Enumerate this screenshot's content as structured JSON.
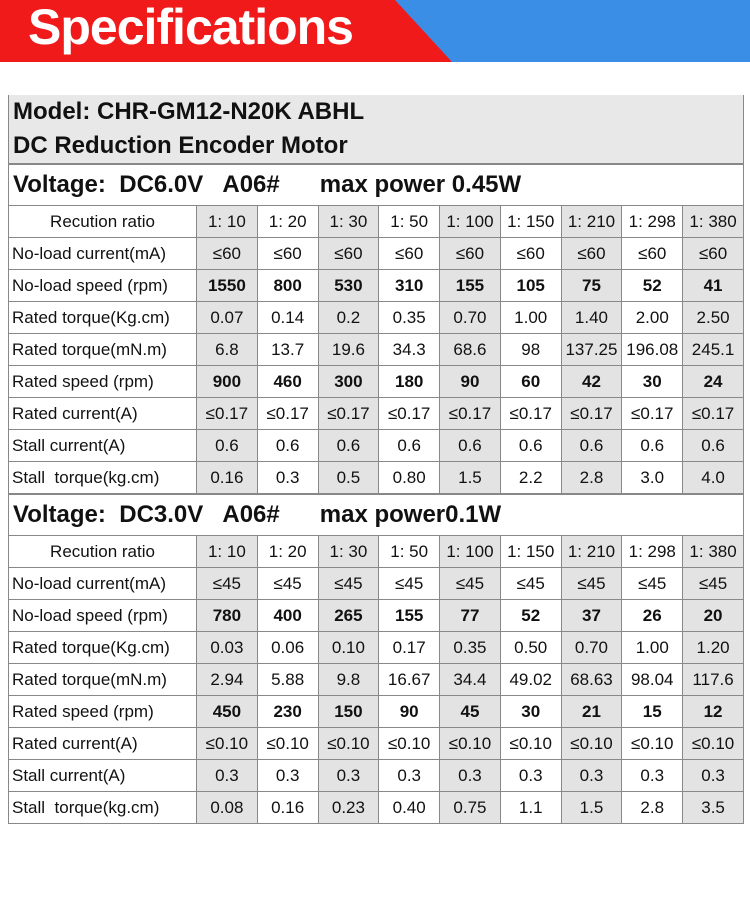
{
  "header": {
    "title": "Specifications"
  },
  "model": "Model: CHR-GM12-N20K ABHL",
  "description": "DC Reduction Encoder Motor",
  "sections": [
    {
      "voltage": "Voltage:  DC6.0V   A06#      max power 0.45W",
      "ratio_label": "Recution ratio",
      "ratios": [
        "1: 10",
        "1: 20",
        "1: 30",
        "1: 50",
        "1: 100",
        "1: 150",
        "1: 210",
        "1: 298",
        "1: 380"
      ],
      "rows": [
        {
          "label": "No-load current(mA)",
          "values": [
            "≤60",
            "≤60",
            "≤60",
            "≤60",
            "≤60",
            "≤60",
            "≤60",
            "≤60",
            "≤60"
          ]
        },
        {
          "label": "No-load speed (rpm)",
          "values": [
            "1550",
            "800",
            "530",
            "310",
            "155",
            "105",
            "75",
            "52",
            "41"
          ]
        },
        {
          "label": "Rated torque(Kg.cm)",
          "values": [
            "0.07",
            "0.14",
            "0.2",
            "0.35",
            "0.70",
            "1.00",
            "1.40",
            "2.00",
            "2.50"
          ]
        },
        {
          "label": "Rated torque(mN.m)",
          "values": [
            "6.8",
            "13.7",
            "19.6",
            "34.3",
            "68.6",
            "98",
            "137.25",
            "196.08",
            "245.1"
          ]
        },
        {
          "label": "Rated speed (rpm)",
          "values": [
            "900",
            "460",
            "300",
            "180",
            "90",
            "60",
            "42",
            "30",
            "24"
          ]
        },
        {
          "label": "Rated current(A)",
          "values": [
            "≤0.17",
            "≤0.17",
            "≤0.17",
            "≤0.17",
            "≤0.17",
            "≤0.17",
            "≤0.17",
            "≤0.17",
            "≤0.17"
          ]
        },
        {
          "label": "Stall current(A)",
          "values": [
            "0.6",
            "0.6",
            "0.6",
            "0.6",
            "0.6",
            "0.6",
            "0.6",
            "0.6",
            "0.6"
          ]
        },
        {
          "label": "Stall  torque(kg.cm)",
          "values": [
            "0.16",
            "0.3",
            "0.5",
            "0.80",
            "1.5",
            "2.2",
            "2.8",
            "3.0",
            "4.0"
          ]
        }
      ]
    },
    {
      "voltage": "Voltage:  DC3.0V   A06#      max power0.1W",
      "ratio_label": "Recution ratio",
      "ratios": [
        "1: 10",
        "1: 20",
        "1: 30",
        "1: 50",
        "1: 100",
        "1: 150",
        "1: 210",
        "1: 298",
        "1: 380"
      ],
      "rows": [
        {
          "label": "No-load current(mA)",
          "values": [
            "≤45",
            "≤45",
            "≤45",
            "≤45",
            "≤45",
            "≤45",
            "≤45",
            "≤45",
            "≤45"
          ]
        },
        {
          "label": "No-load speed (rpm)",
          "values": [
            "780",
            "400",
            "265",
            "155",
            "77",
            "52",
            "37",
            "26",
            "20"
          ]
        },
        {
          "label": "Rated torque(Kg.cm)",
          "values": [
            "0.03",
            "0.06",
            "0.10",
            "0.17",
            "0.35",
            "0.50",
            "0.70",
            "1.00",
            "1.20"
          ]
        },
        {
          "label": "Rated torque(mN.m)",
          "values": [
            "2.94",
            "5.88",
            "9.8",
            "16.67",
            "34.4",
            "49.02",
            "68.63",
            "98.04",
            "117.6"
          ]
        },
        {
          "label": "Rated speed (rpm)",
          "values": [
            "450",
            "230",
            "150",
            "90",
            "45",
            "30",
            "21",
            "15",
            "12"
          ]
        },
        {
          "label": "Rated current(A)",
          "values": [
            "≤0.10",
            "≤0.10",
            "≤0.10",
            "≤0.10",
            "≤0.10",
            "≤0.10",
            "≤0.10",
            "≤0.10",
            "≤0.10"
          ]
        },
        {
          "label": "Stall current(A)",
          "values": [
            "0.3",
            "0.3",
            "0.3",
            "0.3",
            "0.3",
            "0.3",
            "0.3",
            "0.3",
            "0.3"
          ]
        },
        {
          "label": "Stall  torque(kg.cm)",
          "values": [
            "0.08",
            "0.16",
            "0.23",
            "0.40",
            "0.75",
            "1.1",
            "1.5",
            "2.8",
            "3.5"
          ]
        }
      ]
    }
  ]
}
